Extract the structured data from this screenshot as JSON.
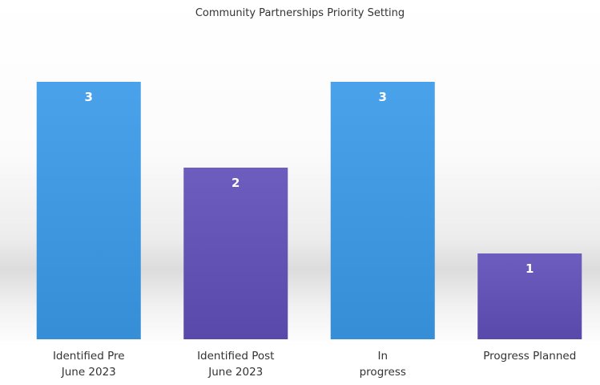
{
  "chart_data": {
    "type": "bar",
    "title": "Community Partnerships Priority Setting",
    "categories": [
      "Identified Pre\nJune 2023",
      "Identified Post\nJune 2023",
      "In\nprogress",
      "Progress Planned"
    ],
    "values": [
      3,
      2,
      3,
      1
    ],
    "colors": [
      "#3a9ae9",
      "#604fb9",
      "#3a9ae9",
      "#604fb9"
    ],
    "data_labels": true
  }
}
